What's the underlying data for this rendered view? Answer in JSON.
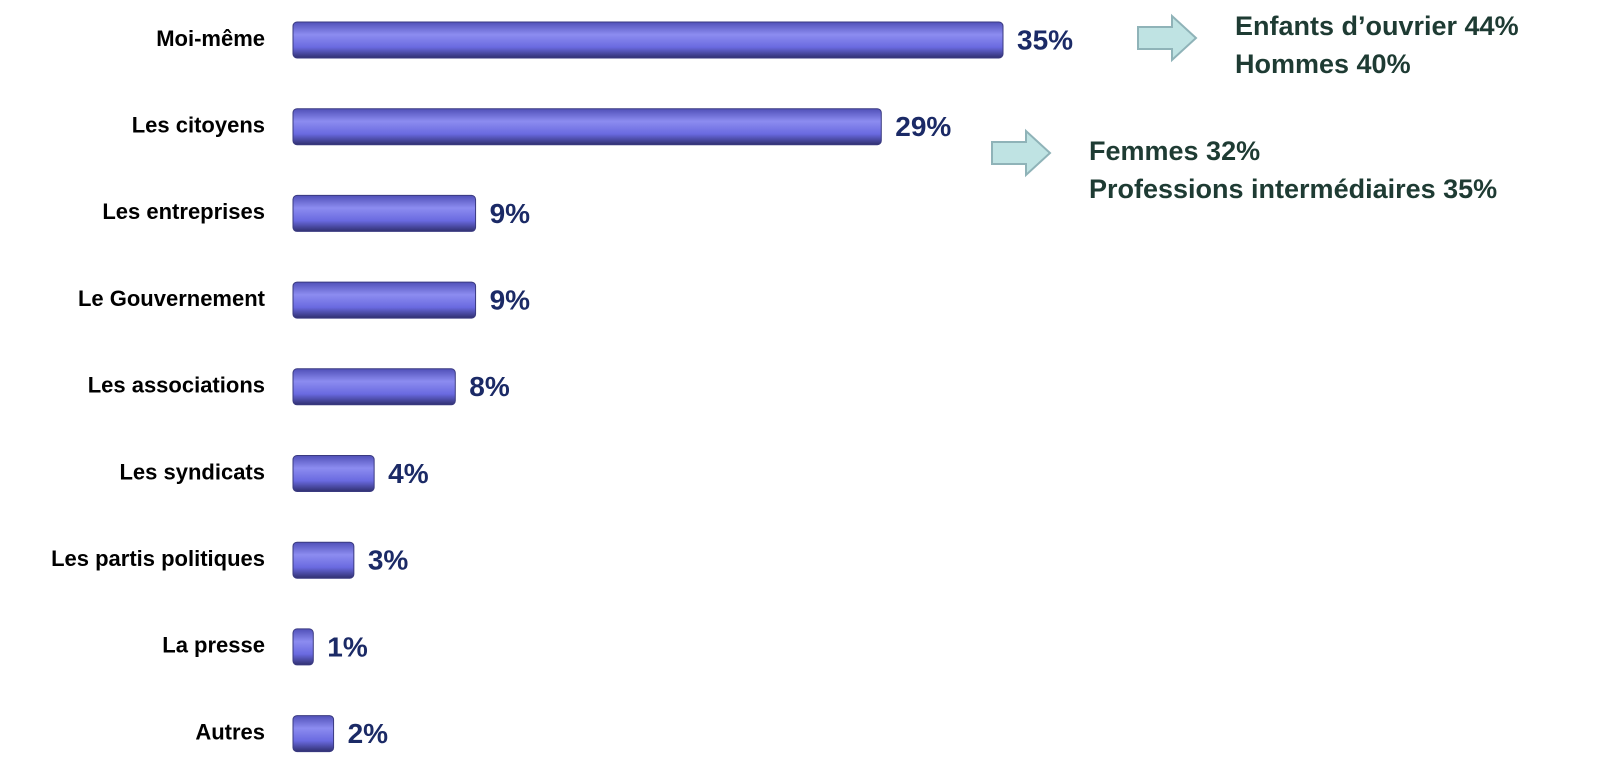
{
  "chart_data": {
    "type": "bar",
    "orientation": "horizontal",
    "categories": [
      "Moi-même",
      "Les citoyens",
      "Les entreprises",
      "Le Gouvernement",
      "Les associations",
      "Les syndicats",
      "Les partis politiques",
      "La presse",
      "Autres"
    ],
    "values": [
      35,
      29,
      9,
      9,
      8,
      4,
      3,
      1,
      2
    ],
    "value_labels": [
      "35%",
      "29%",
      "9%",
      "9%",
      "8%",
      "4%",
      "3%",
      "1%",
      "2%"
    ],
    "color": "#6a6ae0",
    "annotations": [
      {
        "lines": [
          "Enfants d’ouvrier 44%",
          "Hommes 40%"
        ]
      },
      {
        "lines": [
          "Femmes 32%",
          "Professions intermédiaires 35%"
        ]
      }
    ]
  }
}
